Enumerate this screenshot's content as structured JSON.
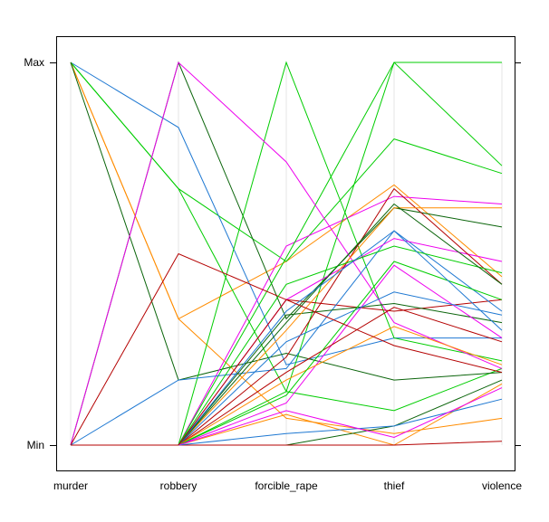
{
  "chart_data": {
    "type": "parallel-coordinates",
    "axes": [
      "murder",
      "robbery",
      "forcible_rape",
      "thief",
      "violence"
    ],
    "y_tick_labels": {
      "max": "Max",
      "min": "Min"
    },
    "ylim": [
      0,
      1
    ],
    "grid": true,
    "legend": "none",
    "series": [
      {
        "color": "#ff8c00",
        "values": [
          1.0,
          0.33,
          0.48,
          0.68,
          0.44
        ]
      },
      {
        "color": "#00cd00",
        "values": [
          1.0,
          0.67,
          0.48,
          0.8,
          0.71
        ]
      },
      {
        "color": "#1e78d2",
        "values": [
          1.0,
          0.83,
          0.21,
          0.28,
          0.28
        ]
      },
      {
        "color": "#00cd00",
        "values": [
          1.0,
          0.67,
          0.14,
          0.09,
          0.2
        ]
      },
      {
        "color": "#ff8c00",
        "values": [
          1.0,
          0.33,
          0.07,
          0.03,
          0.07
        ]
      },
      {
        "color": "#0a640a",
        "values": [
          1.0,
          0.17,
          0.24,
          0.17,
          0.19
        ]
      },
      {
        "color": "#ee00ee",
        "values": [
          0.0,
          0.0,
          0.52,
          0.65,
          0.63
        ]
      },
      {
        "color": "#0a640a",
        "values": [
          0.0,
          1.0,
          0.33,
          0.62,
          0.57
        ]
      },
      {
        "color": "#00cd00",
        "values": [
          0.0,
          0.0,
          1.0,
          0.28,
          0.22
        ]
      },
      {
        "color": "#00cd00",
        "values": [
          0.0,
          0.0,
          0.49,
          1.0,
          0.73
        ]
      },
      {
        "color": "#00cd00",
        "values": [
          0.0,
          0.0,
          0.14,
          1.0,
          1.0
        ]
      },
      {
        "color": "#ee00ee",
        "values": [
          0.0,
          1.0,
          0.74,
          0.32,
          0.2
        ]
      },
      {
        "color": "#b40000",
        "values": [
          0.0,
          0.5,
          0.38,
          0.35,
          0.38
        ]
      },
      {
        "color": "#ff8c00",
        "values": [
          0.0,
          0.0,
          0.08,
          0.0,
          0.16
        ]
      },
      {
        "color": "#1e78d2",
        "values": [
          0.0,
          0.17,
          0.2,
          0.56,
          0.35
        ]
      },
      {
        "color": "#0a640a",
        "values": [
          0.0,
          0.0,
          0.0,
          0.05,
          0.17
        ]
      },
      {
        "color": "#b40000",
        "values": [
          0.0,
          0.0,
          0.0,
          0.0,
          0.01
        ]
      },
      {
        "color": "#ee00ee",
        "values": [
          0.0,
          0.0,
          0.38,
          0.54,
          0.48
        ]
      },
      {
        "color": "#1e78d2",
        "values": [
          0.0,
          0.0,
          0.03,
          0.05,
          0.12
        ]
      },
      {
        "color": "#b40000",
        "values": [
          0.0,
          0.0,
          0.23,
          0.67,
          0.42
        ]
      },
      {
        "color": "#0a640a",
        "values": [
          0.0,
          0.0,
          0.34,
          0.37,
          0.32
        ]
      },
      {
        "color": "#ff8c00",
        "values": [
          0.0,
          0.0,
          0.3,
          0.62,
          0.62
        ]
      },
      {
        "color": "#00cd00",
        "values": [
          0.0,
          0.0,
          0.42,
          0.52,
          0.45
        ]
      },
      {
        "color": "#ee00ee",
        "values": [
          0.0,
          0.0,
          0.11,
          0.47,
          0.28
        ]
      },
      {
        "color": "#1e78d2",
        "values": [
          0.0,
          0.0,
          0.27,
          0.4,
          0.34
        ]
      },
      {
        "color": "#b40000",
        "values": [
          0.0,
          0.0,
          0.19,
          0.36,
          0.27
        ]
      },
      {
        "color": "#0a640a",
        "values": [
          0.0,
          0.0,
          0.32,
          0.63,
          0.42
        ]
      },
      {
        "color": "#ff8c00",
        "values": [
          0.0,
          0.0,
          0.17,
          0.31,
          0.21
        ]
      },
      {
        "color": "#00cd00",
        "values": [
          0.0,
          0.0,
          0.13,
          0.48,
          0.38
        ]
      },
      {
        "color": "#ee00ee",
        "values": [
          0.0,
          0.0,
          0.09,
          0.02,
          0.15
        ]
      },
      {
        "color": "#1e78d2",
        "values": [
          0.0,
          0.0,
          0.35,
          0.56,
          0.3
        ]
      },
      {
        "color": "#b40000",
        "values": [
          0.0,
          0.0,
          0.38,
          0.26,
          0.19
        ]
      }
    ]
  }
}
